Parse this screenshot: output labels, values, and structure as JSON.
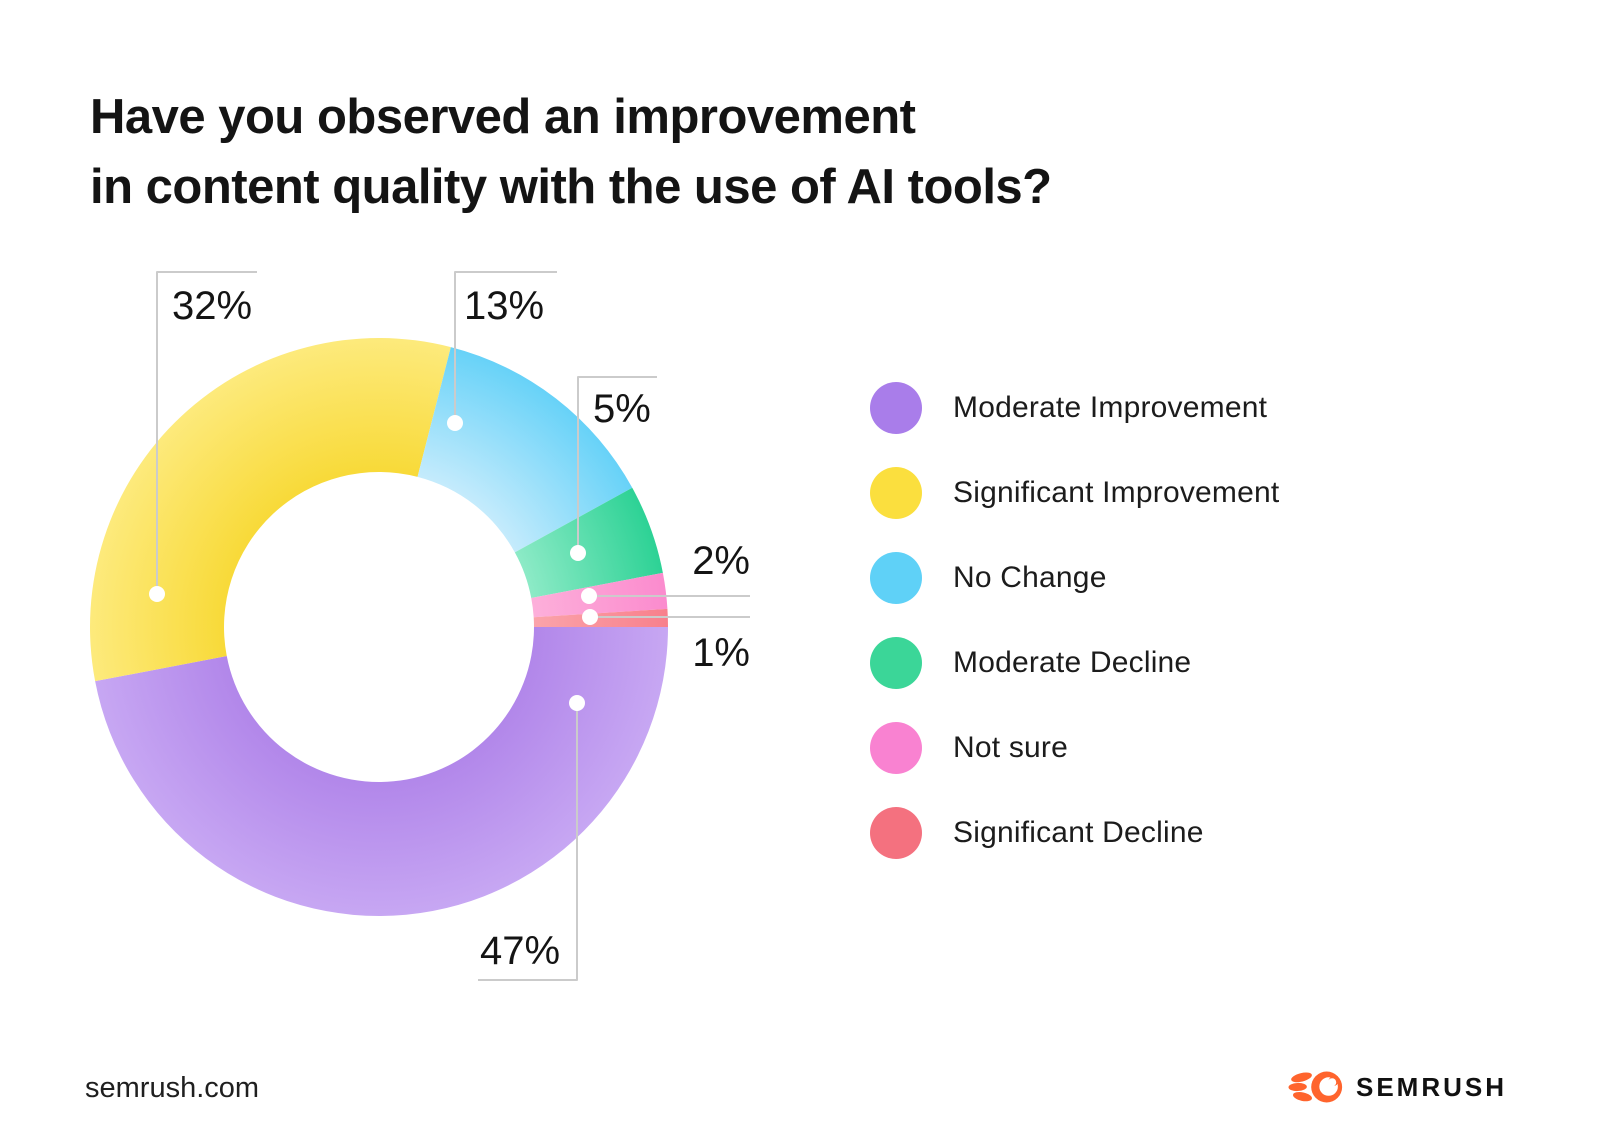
{
  "title": {
    "line1": "Have you observed an improvement",
    "line2": "in content quality with the use of AI tools?"
  },
  "chart_data": {
    "type": "pie",
    "subtype": "donut",
    "title": "Have you observed an improvement in content quality with the use of AI tools?",
    "unit": "%",
    "start_angle_deg": 0,
    "direction": "clockwise",
    "legend_position": "right",
    "segments": [
      {
        "label": "Moderate Improvement",
        "value": 47,
        "value_label": "47%",
        "color": "#a97dea",
        "gradient_inner": "#b287ea",
        "gradient_outer": "#c7a7f3"
      },
      {
        "label": "Significant Improvement",
        "value": 32,
        "value_label": "32%",
        "color": "#fbdf3e",
        "gradient_inner": "#f8da39",
        "gradient_outer": "#fdea7c"
      },
      {
        "label": "No Change",
        "value": 13,
        "value_label": "13%",
        "color": "#5fd1f7",
        "gradient_inner": "#c4ebfc",
        "gradient_outer": "#67d2f8"
      },
      {
        "label": "Moderate Decline",
        "value": 5,
        "value_label": "5%",
        "color": "#3bd698",
        "gradient_inner": "#8ceac6",
        "gradient_outer": "#2dd295"
      },
      {
        "label": "Not sure",
        "value": 2,
        "value_label": "2%",
        "color": "#f982d1",
        "gradient_inner": "#fdafda",
        "gradient_outer": "#fb8bce"
      },
      {
        "label": "Significant Decline",
        "value": 1,
        "value_label": "1%",
        "color": "#f4717f",
        "gradient_inner": "#fba3aa",
        "gradient_outer": "#f8808c"
      }
    ]
  },
  "footer": {
    "site": "semrush.com",
    "brand": "SEMRUSH"
  },
  "colors": {
    "leader_line": "#cbcbcb",
    "dot": "#ffffff",
    "text": "#141414",
    "brand_orange": "#ff642d",
    "background": "#ffffff"
  }
}
